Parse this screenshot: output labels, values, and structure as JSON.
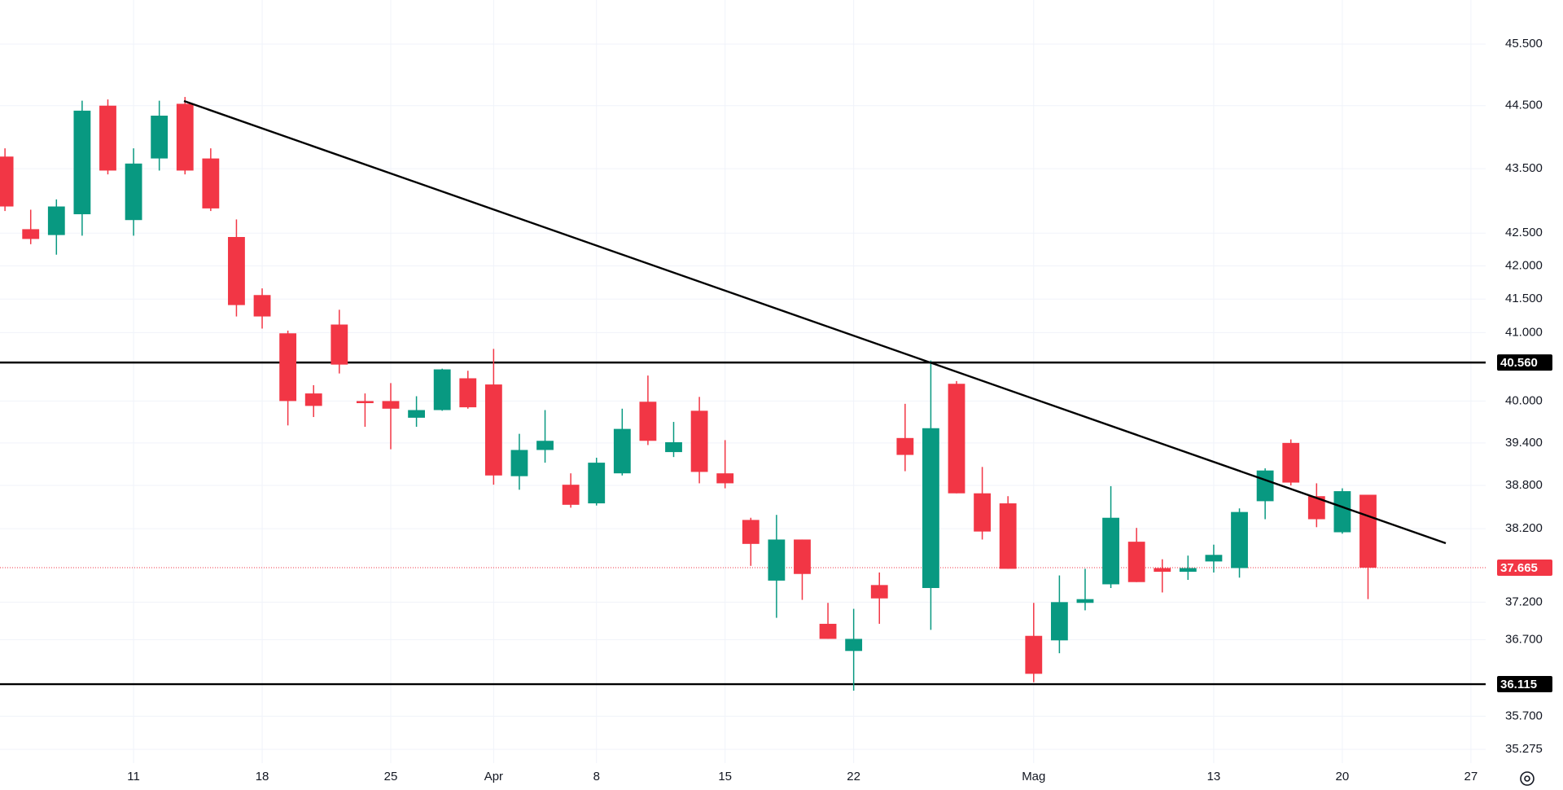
{
  "chart_data": {
    "type": "candlestick",
    "log_scale": true,
    "grid": true,
    "up_color": "#089981",
    "down_color": "#f23645",
    "categories": [
      null,
      null,
      null,
      null,
      null,
      "11",
      null,
      null,
      null,
      null,
      "18",
      null,
      null,
      null,
      null,
      "25",
      null,
      null,
      null,
      "Apr",
      null,
      null,
      null,
      "8",
      null,
      null,
      null,
      null,
      "15",
      null,
      null,
      null,
      null,
      "22",
      null,
      null,
      null,
      null,
      null,
      null,
      "Mag",
      null,
      null,
      null,
      null,
      null,
      null,
      "13",
      null,
      null,
      null,
      null,
      "20",
      null,
      null,
      null,
      null,
      "27"
    ],
    "open": [
      43.69,
      42.56,
      42.47,
      42.79,
      44.5,
      42.7,
      43.66,
      44.53,
      43.66,
      42.44,
      41.56,
      40.99,
      40.11,
      41.12,
      40,
      40,
      39.76,
      39.87,
      40.33,
      40.24,
      38.93,
      39.3,
      38.81,
      38.55,
      38.97,
      39.99,
      39.27,
      39.86,
      38.97,
      38.32,
      37.49,
      38.05,
      36.91,
      36.55,
      37.43,
      39.47,
      37.39,
      40.25,
      38.69,
      38.55,
      36.75,
      36.69,
      37.19,
      37.44,
      38.02,
      37.66,
      37.61,
      37.75,
      37.66,
      38.58,
      39.4,
      38.65,
      38.15,
      38.67,
      null,
      null,
      null,
      null
    ],
    "high": [
      43.82,
      42.86,
      43.02,
      44.58,
      44.6,
      43.82,
      44.58,
      44.64,
      43.82,
      42.71,
      41.66,
      41.03,
      40.23,
      41.34,
      40.11,
      40.26,
      40.07,
      40.47,
      40.44,
      40.76,
      39.53,
      39.87,
      38.97,
      39.19,
      39.89,
      40.37,
      39.7,
      40.06,
      39.44,
      38.35,
      38.39,
      38.05,
      37.19,
      37.11,
      37.6,
      39.96,
      40.59,
      40.29,
      39.06,
      38.65,
      37.19,
      37.56,
      37.65,
      38.79,
      38.21,
      37.78,
      37.83,
      37.98,
      38.48,
      39.04,
      39.45,
      38.83,
      38.76,
      38.67,
      null,
      null,
      null,
      null
    ],
    "low": [
      42.84,
      42.33,
      42.17,
      42.46,
      43.41,
      42.46,
      43.47,
      43.41,
      42.84,
      41.24,
      41.06,
      39.65,
      39.77,
      40.4,
      39.63,
      39.31,
      39.63,
      39.86,
      39.89,
      38.81,
      38.74,
      39.12,
      38.49,
      38.52,
      38.94,
      39.37,
      39.2,
      38.83,
      38.76,
      37.69,
      36.99,
      37.23,
      36.71,
      36.03,
      36.91,
      39,
      36.83,
      38.69,
      38.05,
      37.65,
      36.14,
      36.52,
      37.09,
      37.39,
      37.47,
      37.33,
      37.5,
      37.6,
      37.53,
      38.33,
      38.8,
      38.22,
      38.13,
      37.24,
      null,
      null,
      null,
      null
    ],
    "close": [
      42.91,
      42.41,
      42.91,
      44.42,
      43.47,
      43.58,
      44.34,
      43.47,
      42.88,
      41.41,
      41.24,
      40,
      39.93,
      40.53,
      39.97,
      39.89,
      39.87,
      40.46,
      39.91,
      38.94,
      39.3,
      39.43,
      38.53,
      39.12,
      39.6,
      39.43,
      39.41,
      38.99,
      38.83,
      37.99,
      38.05,
      37.58,
      36.71,
      36.71,
      37.25,
      39.23,
      39.61,
      38.69,
      38.16,
      37.65,
      36.25,
      37.2,
      37.24,
      38.35,
      37.47,
      37.61,
      37.66,
      37.84,
      38.43,
      39.01,
      38.84,
      38.33,
      38.72,
      37.665,
      null,
      null,
      null,
      null
    ],
    "ylim": [
      35.1,
      46.23
    ],
    "yticks": [
      {
        "value": 45.5,
        "label": "45.500"
      },
      {
        "value": 44.5,
        "label": "44.500"
      },
      {
        "value": 43.5,
        "label": "43.500"
      },
      {
        "value": 42.5,
        "label": "42.500"
      },
      {
        "value": 42,
        "label": "42.000"
      },
      {
        "value": 41.5,
        "label": "41.500"
      },
      {
        "value": 41,
        "label": "41.000"
      },
      {
        "value": 40,
        "label": "40.000"
      },
      {
        "value": 39.4,
        "label": "39.400"
      },
      {
        "value": 38.8,
        "label": "38.800"
      },
      {
        "value": 38.2,
        "label": "38.200"
      },
      {
        "value": 37.2,
        "label": "37.200"
      },
      {
        "value": 36.7,
        "label": "36.700"
      },
      {
        "value": 35.7,
        "label": "35.700"
      },
      {
        "value": 35.275,
        "label": "35.275"
      }
    ],
    "levels": [
      {
        "value": 40.56,
        "label": "40.560",
        "color": "#000000"
      },
      {
        "value": 36.115,
        "label": "36.115",
        "color": "#000000"
      }
    ],
    "last_price": {
      "value": 37.665,
      "label": "37.665",
      "color": "#f23645"
    }
  }
}
